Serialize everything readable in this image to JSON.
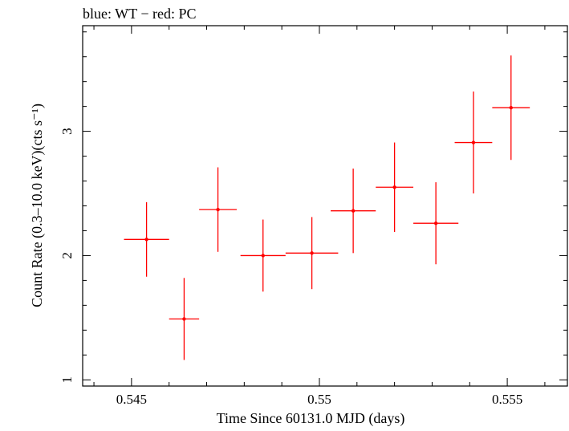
{
  "chart_data": {
    "type": "scatter",
    "title": "blue: WT − red: PC",
    "xlabel": "Time Since 60131.0 MJD (days)",
    "ylabel": "Count Rate (0.3–10.0 keV)(cts s⁻¹)",
    "xlim": [
      0.5437,
      0.5566
    ],
    "ylim": [
      0.95,
      3.85
    ],
    "xticks": [
      {
        "value": 0.545,
        "label": "0.545"
      },
      {
        "value": 0.55,
        "label": "0.55"
      },
      {
        "value": 0.555,
        "label": "0.555"
      }
    ],
    "yticks": [
      {
        "value": 1,
        "label": "1"
      },
      {
        "value": 2,
        "label": "2"
      },
      {
        "value": 3,
        "label": "3"
      }
    ],
    "grid": false,
    "series": [
      {
        "name": "PC",
        "color": "#ff0000",
        "points": [
          {
            "x": 0.5454,
            "y": 2.13,
            "xerr": 0.0006,
            "yerr": 0.3
          },
          {
            "x": 0.5464,
            "y": 1.49,
            "xerr": 0.0004,
            "yerr": 0.33
          },
          {
            "x": 0.5473,
            "y": 2.37,
            "xerr": 0.0005,
            "yerr": 0.34
          },
          {
            "x": 0.5485,
            "y": 2.0,
            "xerr": 0.0006,
            "yerr": 0.29
          },
          {
            "x": 0.5498,
            "y": 2.02,
            "xerr": 0.0007,
            "yerr": 0.29
          },
          {
            "x": 0.5509,
            "y": 2.36,
            "xerr": 0.0006,
            "yerr": 0.34
          },
          {
            "x": 0.552,
            "y": 2.55,
            "xerr": 0.0005,
            "yerr": 0.36
          },
          {
            "x": 0.5531,
            "y": 2.26,
            "xerr": 0.0006,
            "yerr": 0.33
          },
          {
            "x": 0.5541,
            "y": 2.91,
            "xerr": 0.0005,
            "yerr": 0.41
          },
          {
            "x": 0.5551,
            "y": 3.19,
            "xerr": 0.0005,
            "yerr": 0.42
          }
        ]
      }
    ]
  }
}
